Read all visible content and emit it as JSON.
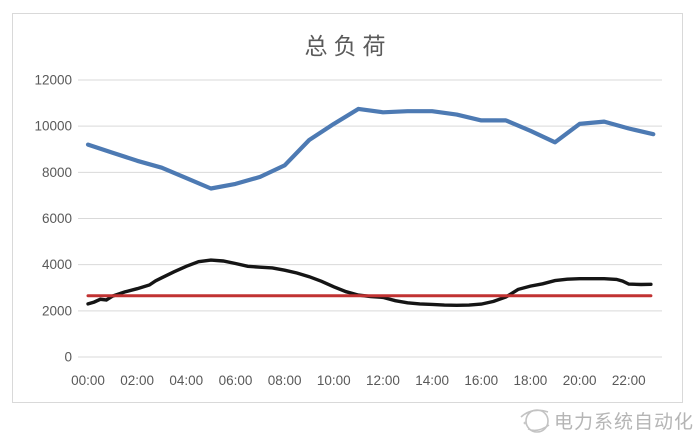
{
  "chart_data": {
    "type": "line",
    "title": "总负荷",
    "xlabel": "",
    "ylabel": "",
    "xlim_hours": [
      0,
      24
    ],
    "ylim": [
      0,
      12000
    ],
    "grid": "horizontal",
    "legend_position": "none",
    "y_ticks": [
      0,
      2000,
      4000,
      6000,
      8000,
      10000,
      12000
    ],
    "x_tick_labels": [
      "00:00",
      "02:00",
      "04:00",
      "06:00",
      "08:00",
      "10:00",
      "12:00",
      "14:00",
      "16:00",
      "18:00",
      "20:00",
      "22:00"
    ],
    "x_tick_hours": [
      0,
      2,
      4,
      6,
      8,
      10,
      12,
      14,
      16,
      18,
      20,
      22
    ],
    "series": [
      {
        "name": "blue-load-curve",
        "color": "#4d7ab3",
        "width": 4.2,
        "points": [
          [
            0,
            9200
          ],
          [
            1,
            8850
          ],
          [
            2,
            8500
          ],
          [
            3,
            8200
          ],
          [
            4,
            7750
          ],
          [
            5,
            7300
          ],
          [
            6,
            7500
          ],
          [
            7,
            7800
          ],
          [
            8,
            8300
          ],
          [
            9,
            9400
          ],
          [
            10,
            10100
          ],
          [
            11,
            10750
          ],
          [
            12,
            10600
          ],
          [
            13,
            10650
          ],
          [
            14,
            10650
          ],
          [
            15,
            10500
          ],
          [
            16,
            10250
          ],
          [
            17,
            10250
          ],
          [
            18,
            9800
          ],
          [
            19,
            9300
          ],
          [
            20,
            10100
          ],
          [
            21,
            10200
          ],
          [
            22,
            9900
          ],
          [
            23,
            9650
          ]
        ]
      },
      {
        "name": "black-curve",
        "color": "#151515",
        "width": 3.4,
        "points": [
          [
            0,
            2300
          ],
          [
            0.25,
            2380
          ],
          [
            0.5,
            2500
          ],
          [
            0.75,
            2470
          ],
          [
            1,
            2640
          ],
          [
            1.5,
            2820
          ],
          [
            2,
            2960
          ],
          [
            2.5,
            3120
          ],
          [
            2.75,
            3300
          ],
          [
            3,
            3430
          ],
          [
            3.5,
            3690
          ],
          [
            4,
            3930
          ],
          [
            4.5,
            4130
          ],
          [
            5,
            4200
          ],
          [
            5.5,
            4160
          ],
          [
            6,
            4050
          ],
          [
            6.5,
            3930
          ],
          [
            7,
            3890
          ],
          [
            7.5,
            3860
          ],
          [
            8,
            3760
          ],
          [
            8.5,
            3640
          ],
          [
            9,
            3480
          ],
          [
            9.5,
            3280
          ],
          [
            10,
            3040
          ],
          [
            10.5,
            2830
          ],
          [
            11,
            2680
          ],
          [
            11.5,
            2620
          ],
          [
            12,
            2580
          ],
          [
            12.5,
            2440
          ],
          [
            13,
            2350
          ],
          [
            13.5,
            2300
          ],
          [
            14,
            2280
          ],
          [
            14.5,
            2250
          ],
          [
            15,
            2240
          ],
          [
            15.5,
            2250
          ],
          [
            16,
            2290
          ],
          [
            16.5,
            2410
          ],
          [
            17,
            2600
          ],
          [
            17.5,
            2930
          ],
          [
            18,
            3070
          ],
          [
            18.5,
            3170
          ],
          [
            19,
            3310
          ],
          [
            19.5,
            3370
          ],
          [
            20,
            3390
          ],
          [
            20.5,
            3390
          ],
          [
            21,
            3390
          ],
          [
            21.5,
            3360
          ],
          [
            21.75,
            3290
          ],
          [
            22,
            3160
          ],
          [
            22.5,
            3140
          ],
          [
            22.9,
            3150
          ]
        ]
      },
      {
        "name": "red-baseline",
        "color": "#c13232",
        "width": 3,
        "points": [
          [
            0,
            2650
          ],
          [
            22.9,
            2650
          ]
        ]
      }
    ],
    "colors": {
      "gridline": "#d9d9d9",
      "axis_label": "#595959",
      "title": "#5a5a5a",
      "watermark": "#b5b5b5",
      "background": "#ffffff"
    }
  },
  "watermark": {
    "text": "电力系统自动化"
  }
}
